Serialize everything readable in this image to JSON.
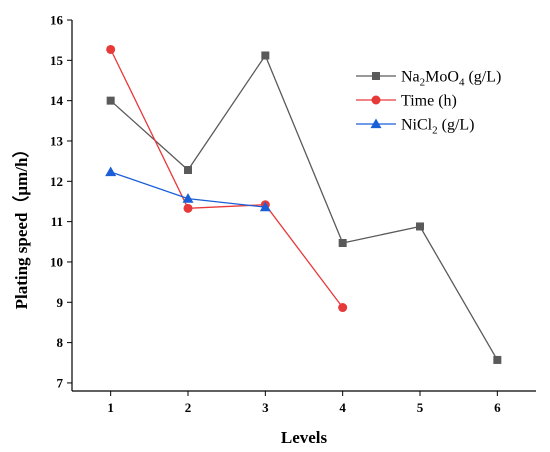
{
  "chart_data": {
    "type": "line",
    "xlabel": "Levels",
    "ylabel": "Plating speed（μm/h）",
    "xlim": [
      0.5,
      6.5
    ],
    "ylim": [
      6.8,
      16
    ],
    "xticks": [
      1,
      2,
      3,
      4,
      5,
      6
    ],
    "yticks": [
      7,
      8,
      9,
      10,
      11,
      12,
      13,
      14,
      15,
      16
    ],
    "grid": false,
    "legend_position": "top-right",
    "series": [
      {
        "name": "Na₂MoO₄ (g/L)",
        "legend_parts": [
          [
            "Na",
            false
          ],
          [
            "2",
            true
          ],
          [
            "MoO",
            false
          ],
          [
            "4",
            true
          ],
          [
            " (g/L)",
            false
          ]
        ],
        "color": "#5a5a5a",
        "marker": "square",
        "x": [
          1,
          2,
          3,
          4,
          5,
          6
        ],
        "values": [
          14.0,
          12.28,
          15.12,
          10.47,
          10.88,
          7.57
        ]
      },
      {
        "name": "Time (h)",
        "legend_parts": [
          [
            "Time (h)",
            false
          ]
        ],
        "color": "#e8393a",
        "marker": "circle",
        "x": [
          1,
          2,
          3,
          4
        ],
        "values": [
          15.27,
          11.33,
          11.42,
          8.87
        ]
      },
      {
        "name": "NiCl₂ (g/L)",
        "legend_parts": [
          [
            "NiCl",
            false
          ],
          [
            "2",
            true
          ],
          [
            " (g/L)",
            false
          ]
        ],
        "color": "#1a5fd6",
        "marker": "triangle",
        "x": [
          1,
          2,
          3
        ],
        "values": [
          12.23,
          11.57,
          11.36
        ]
      }
    ]
  }
}
